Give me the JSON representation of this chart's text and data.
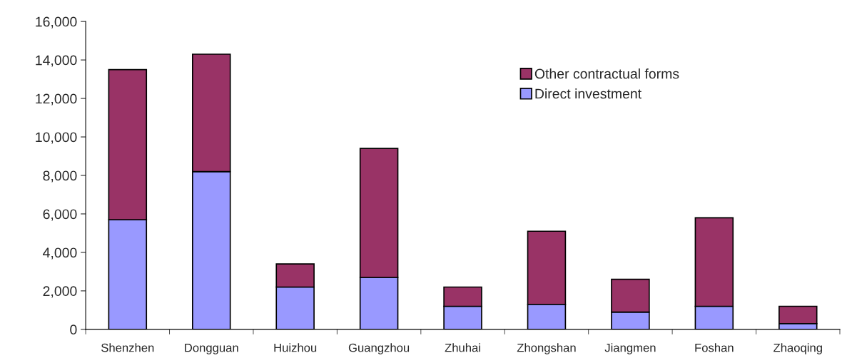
{
  "chart_data": {
    "type": "bar",
    "stacked": true,
    "legend": "top right",
    "grid": false,
    "categories": [
      "Shenzhen",
      "Dongguan",
      "Huizhou",
      "Guangzhou",
      "Zhuhai",
      "Zhongshan",
      "Jiangmen",
      "Foshan",
      "Zhaoqing"
    ],
    "series": [
      {
        "name": "Direct investment",
        "color": "#9999ff",
        "values": [
          5700,
          8200,
          2200,
          2700,
          1200,
          1300,
          900,
          1200,
          300
        ]
      },
      {
        "name": "Other contractual forms",
        "color": "#993366",
        "values": [
          7800,
          6100,
          1200,
          6700,
          1000,
          3800,
          1700,
          4600,
          900
        ]
      }
    ],
    "ylim": [
      0,
      16000
    ],
    "yticks": [
      {
        "value": 0,
        "label": "0"
      },
      {
        "value": 2000,
        "label": "2,000"
      },
      {
        "value": 4000,
        "label": "4,000"
      },
      {
        "value": 6000,
        "label": "6,000"
      },
      {
        "value": 8000,
        "label": "8,000"
      },
      {
        "value": 10000,
        "label": "10,000"
      },
      {
        "value": 12000,
        "label": "12,000"
      },
      {
        "value": 14000,
        "label": "14,000"
      },
      {
        "value": 16000,
        "label": "16,000"
      }
    ]
  }
}
